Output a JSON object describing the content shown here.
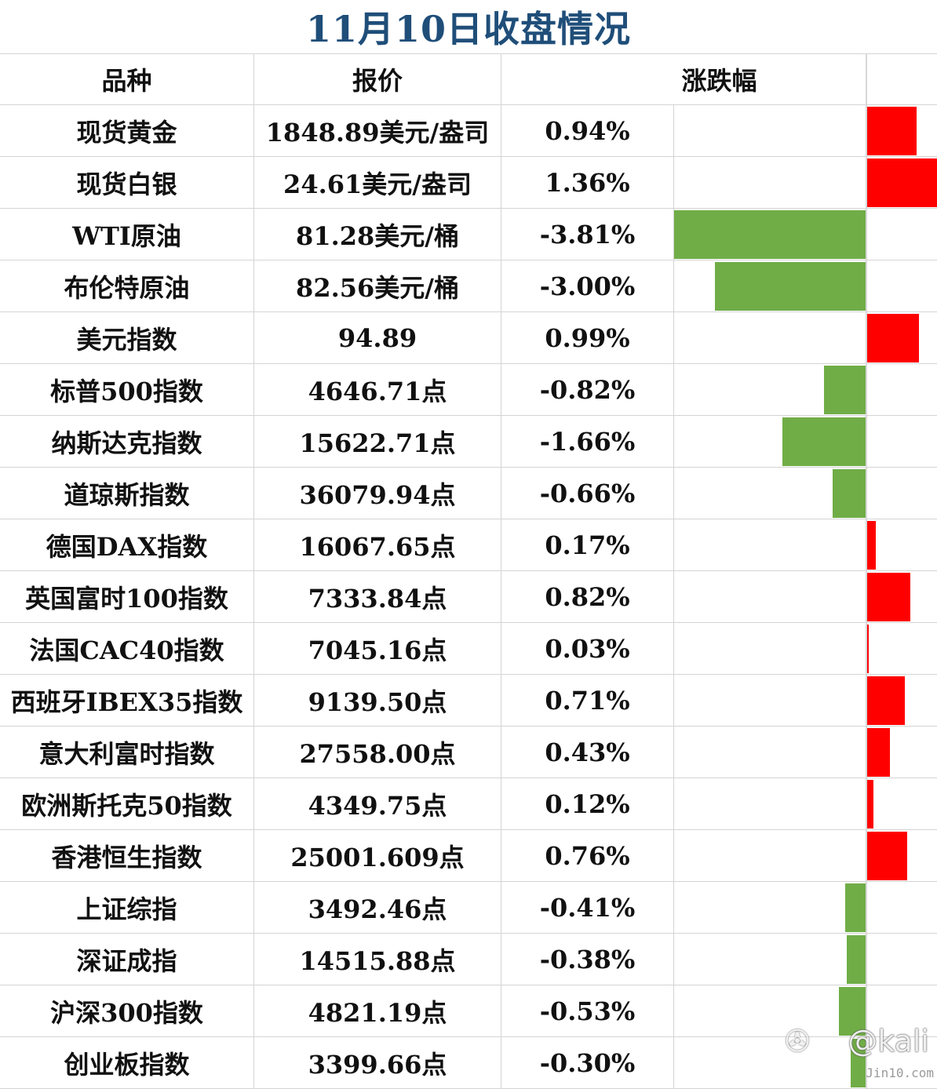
{
  "title": "11月10日收盘情况",
  "headers": {
    "name": "品种",
    "price": "报价",
    "change": "涨跌幅"
  },
  "colors": {
    "up": "#ff0000",
    "down": "#70ad47",
    "title": "#1f4e79"
  },
  "watermark": {
    "text": "@kali",
    "icon": "weibo-icon",
    "site": "Jin10.com"
  },
  "chart_data": {
    "type": "bar",
    "orientation": "horizontal",
    "categories": [
      "现货黄金",
      "现货白银",
      "WTI原油",
      "布伦特原油",
      "美元指数",
      "标普500指数",
      "纳斯达克指数",
      "道琼斯指数",
      "德国DAX指数",
      "英国富时100指数",
      "法国CAC40指数",
      "西班牙IBEX35指数",
      "意大利富时指数",
      "欧洲斯托克50指数",
      "香港恒生指数",
      "上证综指",
      "深证成指",
      "沪深300指数",
      "创业板指数"
    ],
    "values": [
      0.94,
      1.36,
      -3.81,
      -3.0,
      0.99,
      -0.82,
      -1.66,
      -0.66,
      0.17,
      0.82,
      0.03,
      0.71,
      0.43,
      0.12,
      0.76,
      -0.41,
      -0.38,
      -0.53,
      -0.3
    ],
    "xlim": [
      -3.81,
      1.36
    ]
  },
  "rows": [
    {
      "name": "现货黄金",
      "price": "1848.89美元/盎司",
      "pct": "0.94%"
    },
    {
      "name": "现货白银",
      "price": "24.61美元/盎司",
      "pct": "1.36%"
    },
    {
      "name": "WTI原油",
      "price": "81.28美元/桶",
      "pct": "-3.81%"
    },
    {
      "name": "布伦特原油",
      "price": "82.56美元/桶",
      "pct": "-3.00%"
    },
    {
      "name": "美元指数",
      "price": "94.89",
      "pct": "0.99%"
    },
    {
      "name": "标普500指数",
      "price": "4646.71点",
      "pct": "-0.82%"
    },
    {
      "name": "纳斯达克指数",
      "price": "15622.71点",
      "pct": "-1.66%"
    },
    {
      "name": "道琼斯指数",
      "price": "36079.94点",
      "pct": "-0.66%"
    },
    {
      "name": "德国DAX指数",
      "price": "16067.65点",
      "pct": "0.17%"
    },
    {
      "name": "英国富时100指数",
      "price": "7333.84点",
      "pct": "0.82%"
    },
    {
      "name": "法国CAC40指数",
      "price": "7045.16点",
      "pct": "0.03%"
    },
    {
      "name": "西班牙IBEX35指数",
      "price": "9139.50点",
      "pct": "0.71%"
    },
    {
      "name": "意大利富时指数",
      "price": "27558.00点",
      "pct": "0.43%"
    },
    {
      "name": "欧洲斯托克50指数",
      "price": "4349.75点",
      "pct": "0.12%"
    },
    {
      "name": "香港恒生指数",
      "price": "25001.609点",
      "pct": "0.76%"
    },
    {
      "name": "上证综指",
      "price": "3492.46点",
      "pct": "-0.41%"
    },
    {
      "name": "深证成指",
      "price": "14515.88点",
      "pct": "-0.38%"
    },
    {
      "name": "沪深300指数",
      "price": "4821.19点",
      "pct": "-0.53%"
    },
    {
      "name": "创业板指数",
      "price": "3399.66点",
      "pct": "-0.30%"
    }
  ]
}
